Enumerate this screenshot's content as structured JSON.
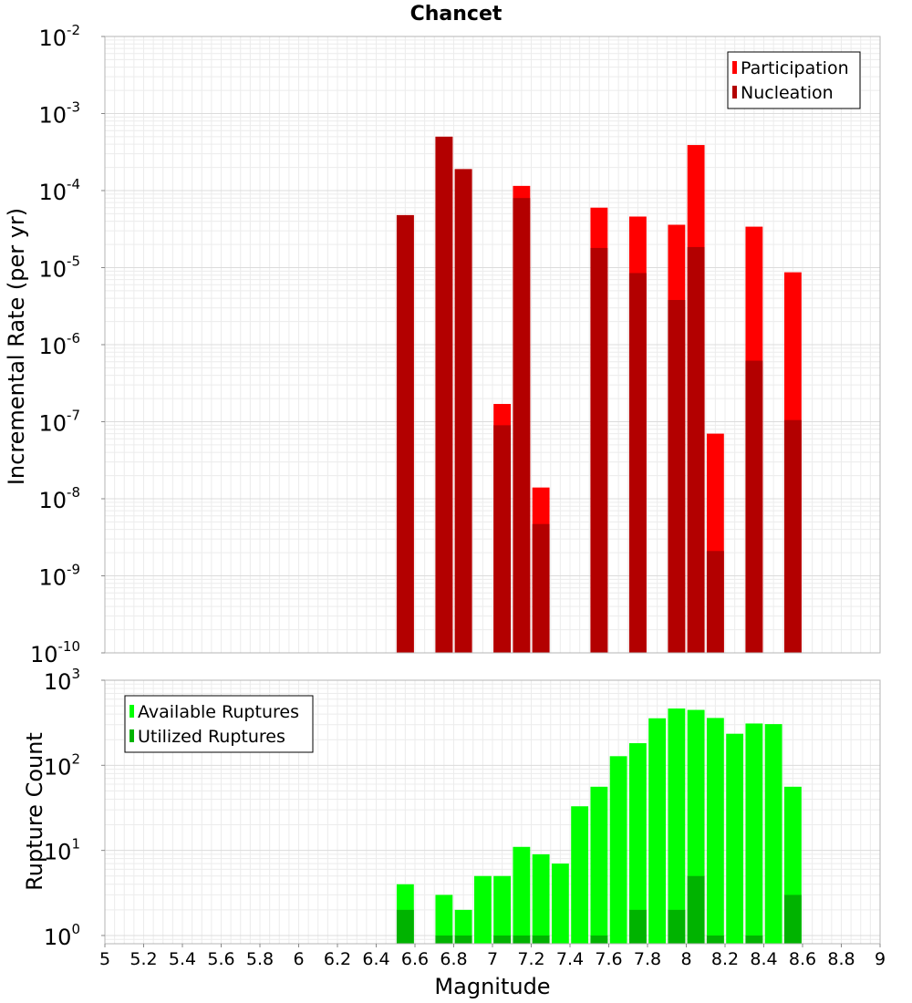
{
  "chart_data": [
    {
      "type": "bar",
      "title": "Chancet",
      "xlabel": "",
      "ylabel": "Incremental Rate (per yr)",
      "yscale": "log",
      "ylim": [
        1e-10,
        0.01
      ],
      "xlim": [
        5,
        9
      ],
      "y_tick_exponents": [
        "-10",
        "-9",
        "-8",
        "-7",
        "-6",
        "-5",
        "-4",
        "-3",
        "-2"
      ],
      "bar_width": 0.1,
      "legend_position": "top-right",
      "grid": true,
      "series": [
        {
          "name": "Participation",
          "color": "#ff0000",
          "points": [
            {
              "x": 6.55,
              "y": 4.8e-05
            },
            {
              "x": 6.75,
              "y": 0.0005
            },
            {
              "x": 6.85,
              "y": 0.00019
            },
            {
              "x": 7.05,
              "y": 1.7e-07
            },
            {
              "x": 7.15,
              "y": 0.000115
            },
            {
              "x": 7.25,
              "y": 1.4e-08
            },
            {
              "x": 7.55,
              "y": 6e-05
            },
            {
              "x": 7.75,
              "y": 4.6e-05
            },
            {
              "x": 7.95,
              "y": 3.6e-05
            },
            {
              "x": 8.05,
              "y": 0.00039
            },
            {
              "x": 8.15,
              "y": 7e-08
            },
            {
              "x": 8.35,
              "y": 3.4e-05
            },
            {
              "x": 8.55,
              "y": 8.7e-06
            }
          ]
        },
        {
          "name": "Nucleation",
          "color": "#b30000",
          "points": [
            {
              "x": 6.55,
              "y": 4.8e-05
            },
            {
              "x": 6.75,
              "y": 0.0005
            },
            {
              "x": 6.85,
              "y": 0.00019
            },
            {
              "x": 7.05,
              "y": 9e-08
            },
            {
              "x": 7.15,
              "y": 8e-05
            },
            {
              "x": 7.25,
              "y": 4.7e-09
            },
            {
              "x": 7.55,
              "y": 1.8e-05
            },
            {
              "x": 7.75,
              "y": 8.5e-06
            },
            {
              "x": 7.95,
              "y": 3.8e-06
            },
            {
              "x": 8.05,
              "y": 1.85e-05
            },
            {
              "x": 8.15,
              "y": 2.1e-09
            },
            {
              "x": 8.35,
              "y": 6.2e-07
            },
            {
              "x": 8.55,
              "y": 1.05e-07
            }
          ]
        }
      ]
    },
    {
      "type": "bar",
      "title": "",
      "xlabel": "Magnitude",
      "ylabel": "Rupture Count",
      "yscale": "log",
      "ylim": [
        0.8,
        1000
      ],
      "xlim": [
        5,
        9
      ],
      "y_tick_exponents": [
        "0",
        "1",
        "2",
        "3"
      ],
      "x_ticks": [
        "5",
        "5.2",
        "5.4",
        "5.6",
        "5.8",
        "6",
        "6.2",
        "6.4",
        "6.6",
        "6.8",
        "7",
        "7.2",
        "7.4",
        "7.6",
        "7.8",
        "8",
        "8.2",
        "8.4",
        "8.6",
        "8.8",
        "9"
      ],
      "bar_width": 0.1,
      "legend_position": "top-left",
      "grid": true,
      "series": [
        {
          "name": "Available Ruptures",
          "color": "#00ff00",
          "points": [
            {
              "x": 6.55,
              "y": 4
            },
            {
              "x": 6.75,
              "y": 3
            },
            {
              "x": 6.85,
              "y": 2
            },
            {
              "x": 6.95,
              "y": 5
            },
            {
              "x": 7.05,
              "y": 5
            },
            {
              "x": 7.15,
              "y": 11
            },
            {
              "x": 7.25,
              "y": 9
            },
            {
              "x": 7.35,
              "y": 7
            },
            {
              "x": 7.45,
              "y": 33
            },
            {
              "x": 7.55,
              "y": 56
            },
            {
              "x": 7.65,
              "y": 128
            },
            {
              "x": 7.75,
              "y": 182
            },
            {
              "x": 7.85,
              "y": 357
            },
            {
              "x": 7.95,
              "y": 465
            },
            {
              "x": 8.05,
              "y": 448
            },
            {
              "x": 8.15,
              "y": 360
            },
            {
              "x": 8.25,
              "y": 235
            },
            {
              "x": 8.35,
              "y": 310
            },
            {
              "x": 8.45,
              "y": 305
            },
            {
              "x": 8.55,
              "y": 56
            }
          ]
        },
        {
          "name": "Utilized Ruptures",
          "color": "#00b300",
          "points": [
            {
              "x": 6.55,
              "y": 2
            },
            {
              "x": 6.75,
              "y": 1
            },
            {
              "x": 6.85,
              "y": 1
            },
            {
              "x": 7.05,
              "y": 1
            },
            {
              "x": 7.15,
              "y": 1
            },
            {
              "x": 7.25,
              "y": 1
            },
            {
              "x": 7.55,
              "y": 1
            },
            {
              "x": 7.75,
              "y": 2
            },
            {
              "x": 7.95,
              "y": 2
            },
            {
              "x": 8.05,
              "y": 5
            },
            {
              "x": 8.15,
              "y": 1
            },
            {
              "x": 8.35,
              "y": 1
            },
            {
              "x": 8.55,
              "y": 3
            }
          ]
        }
      ]
    }
  ]
}
